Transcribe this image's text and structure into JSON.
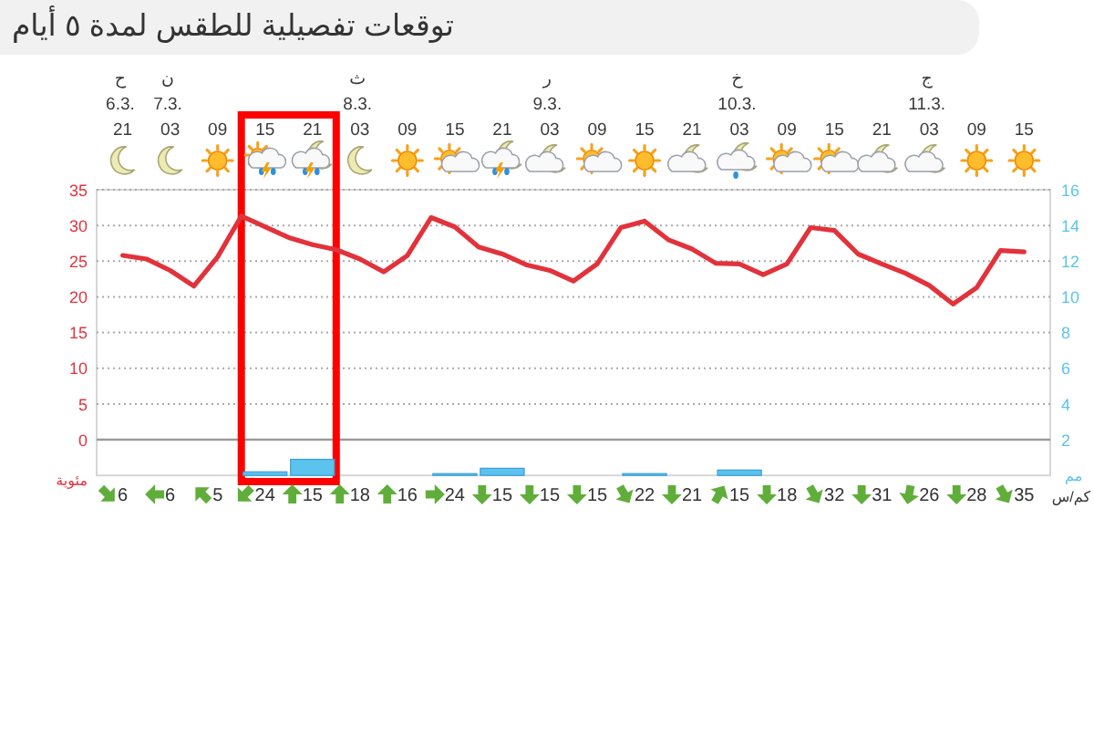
{
  "chart_data": [
    {
      "type": "line",
      "title": "توقعات تفصيلية للطقس لمدة ٥ أيام",
      "ylabel": "مئوية",
      "y2label": "مم",
      "categories": [
        "ح 6.3. 21",
        null,
        "ن 7.3. 03",
        null,
        "09",
        null,
        "15",
        null,
        "21",
        null,
        "ث 8.3. 03",
        null,
        "09",
        null,
        "15",
        null,
        "21",
        null,
        "ر 9.3. 03",
        null,
        "09",
        null,
        "15",
        null,
        "21",
        null,
        "خ 10.3. 03",
        null,
        "09",
        null,
        "15",
        null,
        "21",
        null,
        "ج 11.3. 03",
        null,
        "09",
        null,
        "15"
      ],
      "ylim": [
        -5,
        35
      ],
      "yticks": [
        0,
        5,
        10,
        15,
        20,
        25,
        30,
        35
      ],
      "y2lim": [
        0,
        16
      ],
      "y2ticks": [
        2,
        4,
        6,
        8,
        10,
        12,
        14,
        16
      ],
      "grid": "y",
      "series": [
        {
          "color": "#e2323b",
          "values": [
            25.8,
            25.3,
            23.7,
            21.5,
            25.6,
            31.3,
            29.8,
            28.3,
            27.3,
            26.6,
            25.3,
            23.5,
            25.8,
            31.1,
            29.8,
            27.0,
            26.0,
            24.5,
            23.7,
            22.2,
            24.6,
            29.7,
            30.6,
            28.0,
            26.7,
            24.7,
            24.6,
            23.1,
            24.6,
            29.7,
            29.3,
            26.0,
            24.6,
            23.3,
            21.6,
            19.0,
            21.3,
            26.5,
            26.3
          ]
        },
        {
          "type": "bar",
          "axis": "y2",
          "color": "#5bc3ee",
          "values": [
            null,
            null,
            null,
            null,
            null,
            null,
            0.2,
            null,
            0.9,
            null,
            null,
            null,
            null,
            null,
            0.1,
            null,
            0.4,
            null,
            null,
            null,
            null,
            null,
            0.1,
            null,
            null,
            null,
            0.3,
            null,
            null,
            null,
            null,
            null,
            null,
            null,
            null,
            null,
            null,
            null,
            null
          ]
        }
      ],
      "ref_lines": [
        {
          "axis": "y",
          "value": 0,
          "color": "#9a9a9a",
          "line_style": "solid"
        }
      ]
    },
    {
      "type": "other",
      "categories": [
        null,
        null,
        null,
        null,
        null,
        null,
        null,
        null,
        null,
        null,
        null,
        null,
        null,
        null,
        null,
        null,
        null,
        null,
        null,
        null,
        null,
        null,
        null,
        null,
        null,
        null,
        null,
        null,
        null,
        null,
        null,
        null,
        null,
        null,
        null,
        null,
        null,
        null,
        null
      ],
      "values": [
        6,
        null,
        6,
        null,
        5,
        null,
        24,
        null,
        15,
        null,
        18,
        null,
        16,
        null,
        24,
        null,
        15,
        null,
        15,
        null,
        15,
        null,
        22,
        null,
        21,
        null,
        15,
        null,
        18,
        null,
        32,
        null,
        31,
        null,
        26,
        null,
        28,
        null,
        35
      ],
      "data_labels": true,
      "annotations": [
        "كم/س"
      ]
    }
  ]
}
